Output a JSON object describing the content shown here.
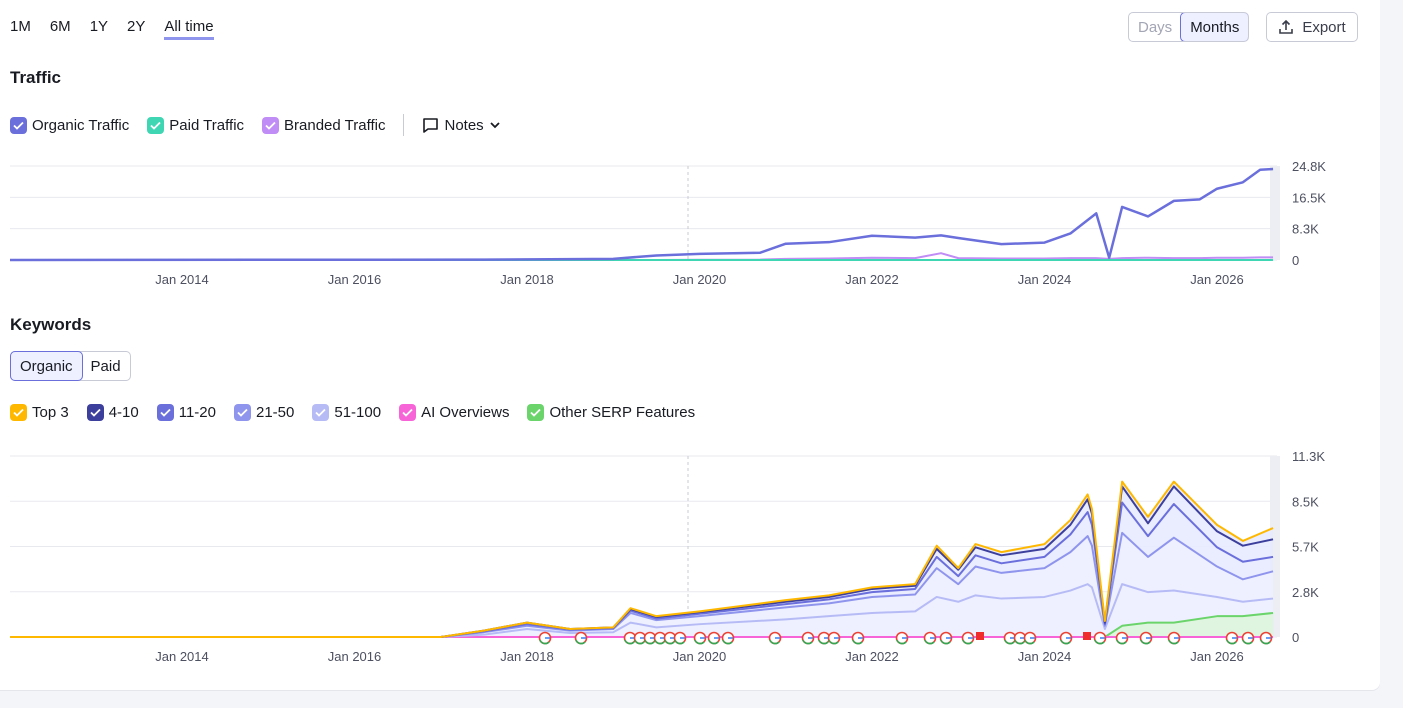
{
  "range_tabs": [
    "1M",
    "6M",
    "1Y",
    "2Y",
    "All time"
  ],
  "active_range": "All time",
  "granularity": {
    "days": "Days",
    "months": "Months",
    "active": "Months"
  },
  "export_label": "Export",
  "traffic": {
    "title": "Traffic",
    "legend": [
      {
        "label": "Organic Traffic",
        "color": "#6a6fdc"
      },
      {
        "label": "Paid Traffic",
        "color": "#3ed6b3"
      },
      {
        "label": "Branded Traffic",
        "color": "#c08cf5"
      }
    ],
    "notes_label": "Notes"
  },
  "keywords": {
    "title": "Keywords",
    "tabs": [
      "Organic",
      "Paid"
    ],
    "active_tab": "Organic",
    "legend": [
      {
        "label": "Top 3",
        "color": "#ffb800"
      },
      {
        "label": "4-10",
        "color": "#3c3f9c"
      },
      {
        "label": "11-20",
        "color": "#6a6fdc"
      },
      {
        "label": "21-50",
        "color": "#8f95ed"
      },
      {
        "label": "51-100",
        "color": "#b6bbf6"
      },
      {
        "label": "AI Overviews",
        "color": "#f764d8"
      },
      {
        "label": "Other SERP Features",
        "color": "#6bd46b"
      }
    ]
  },
  "chart_data": [
    {
      "type": "line",
      "title": "Traffic",
      "x_ticks": [
        "Jan 2014",
        "Jan 2016",
        "Jan 2018",
        "Jan 2020",
        "Jan 2022",
        "Jan 2024",
        "Jan 2026"
      ],
      "y_ticks": [
        "24.8K",
        "16.5K",
        "8.3K",
        "0"
      ],
      "ylim": [
        0,
        24800
      ],
      "x": [
        2012.0,
        2017.5,
        2019.0,
        2019.5,
        2020.0,
        2020.7,
        2021.0,
        2021.5,
        2022.0,
        2022.5,
        2022.8,
        2023.0,
        2023.5,
        2024.0,
        2024.3,
        2024.6,
        2024.75,
        2024.9,
        2025.2,
        2025.5,
        2025.8,
        2026.0,
        2026.3,
        2026.5,
        2026.65
      ],
      "series": [
        {
          "name": "Organic Traffic",
          "values": [
            0,
            100,
            300,
            1200,
            1600,
            1900,
            4300,
            4700,
            6400,
            5900,
            6500,
            5800,
            4200,
            4600,
            7000,
            12300,
            600,
            14000,
            11500,
            15600,
            16000,
            18800,
            20500,
            23800,
            24000
          ]
        },
        {
          "name": "Paid Traffic",
          "values": [
            0,
            0,
            0,
            0,
            0,
            0,
            0,
            0,
            0,
            0,
            0,
            0,
            0,
            0,
            0,
            0,
            0,
            0,
            0,
            0,
            0,
            0,
            0,
            0,
            0
          ]
        },
        {
          "name": "Branded Traffic",
          "values": [
            0,
            0,
            0,
            0,
            50,
            100,
            300,
            400,
            600,
            500,
            1800,
            500,
            400,
            400,
            500,
            500,
            300,
            500,
            600,
            500,
            500,
            600,
            600,
            700,
            700
          ]
        }
      ]
    },
    {
      "type": "area",
      "title": "Keywords",
      "x_ticks": [
        "Jan 2014",
        "Jan 2016",
        "Jan 2018",
        "Jan 2020",
        "Jan 2022",
        "Jan 2024",
        "Jan 2026"
      ],
      "y_ticks": [
        "11.3K",
        "8.5K",
        "5.7K",
        "2.8K",
        "0"
      ],
      "ylim": [
        0,
        11300
      ],
      "x": [
        2012.0,
        2017.0,
        2017.5,
        2018.0,
        2018.5,
        2019.0,
        2019.2,
        2019.5,
        2020.0,
        2021.0,
        2021.5,
        2022.0,
        2022.5,
        2022.75,
        2023.0,
        2023.2,
        2023.5,
        2024.0,
        2024.3,
        2024.5,
        2024.55,
        2024.7,
        2024.9,
        2025.2,
        2025.5,
        2026.0,
        2026.3,
        2026.65
      ],
      "series": [
        {
          "name": "Top 3",
          "values": [
            0,
            0,
            400,
            900,
            500,
            600,
            1800,
            1300,
            1600,
            2300,
            2600,
            3100,
            3300,
            5700,
            4300,
            5800,
            5300,
            5800,
            7300,
            8900,
            8000,
            1000,
            9700,
            7500,
            9700,
            7000,
            6000,
            6800
          ]
        },
        {
          "name": "4-10",
          "values": [
            0,
            0,
            400,
            900,
            500,
            600,
            1750,
            1250,
            1550,
            2200,
            2500,
            3000,
            3200,
            5500,
            4200,
            5600,
            5100,
            5500,
            7000,
            8600,
            7700,
            900,
            9400,
            7100,
            9400,
            6600,
            5700,
            6100
          ]
        },
        {
          "name": "11-20",
          "values": [
            0,
            0,
            350,
            800,
            450,
            550,
            1650,
            1150,
            1450,
            2050,
            2350,
            2800,
            3000,
            5000,
            3800,
            5100,
            4600,
            5000,
            6400,
            7800,
            7000,
            800,
            8400,
            6300,
            8300,
            5600,
            4700,
            5000
          ]
        },
        {
          "name": "21-50",
          "values": [
            0,
            0,
            300,
            700,
            400,
            500,
            1500,
            1050,
            1300,
            1850,
            2100,
            2500,
            2650,
            4300,
            3300,
            4400,
            4000,
            4300,
            5300,
            6300,
            5700,
            700,
            6500,
            5000,
            6200,
            4400,
            3600,
            4100
          ]
        },
        {
          "name": "51-100",
          "values": [
            0,
            0,
            150,
            500,
            250,
            300,
            900,
            600,
            800,
            1100,
            1300,
            1500,
            1600,
            2500,
            2200,
            2600,
            2400,
            2500,
            2900,
            3300,
            3100,
            500,
            3300,
            2800,
            2900,
            2500,
            2200,
            2400
          ]
        },
        {
          "name": "AI Overviews",
          "values": [
            0,
            0,
            0,
            0,
            0,
            0,
            0,
            0,
            0,
            0,
            0,
            0,
            0,
            0,
            0,
            0,
            0,
            0,
            0,
            0,
            0,
            0,
            0,
            0,
            0,
            0,
            0,
            0
          ]
        },
        {
          "name": "Other SERP Features",
          "values": [
            0,
            0,
            0,
            0,
            0,
            0,
            0,
            0,
            0,
            0,
            0,
            0,
            0,
            0,
            0,
            0,
            0,
            0,
            0,
            0,
            0,
            0,
            700,
            900,
            900,
            1300,
            1300,
            1500
          ]
        }
      ]
    }
  ]
}
